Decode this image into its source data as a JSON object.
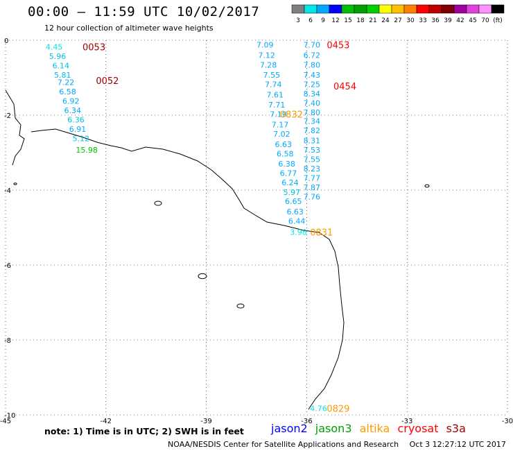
{
  "header": {
    "title": "00:00 – 11:59 UTC 10/02/2017",
    "subtitle": "12 hour collection of altimeter wave heights"
  },
  "scale": {
    "labels": [
      "3",
      "6",
      "9",
      "12",
      "15",
      "18",
      "21",
      "24",
      "27",
      "30",
      "33",
      "36",
      "39",
      "42",
      "45",
      "70",
      "(ft)"
    ],
    "colors": [
      "#7f7f7f",
      "#00e5e5",
      "#00a8ff",
      "#0000ff",
      "#00bf00",
      "#00a000",
      "#00d000",
      "#ffff00",
      "#ffc000",
      "#ff8000",
      "#ff0000",
      "#c00000",
      "#800000",
      "#a000a0",
      "#e040e0",
      "#ff90ff",
      "#000000"
    ]
  },
  "axes": {
    "x_ticks": [
      {
        "lon": -45,
        "label": "-45"
      },
      {
        "lon": -42,
        "label": "-42"
      },
      {
        "lon": -39,
        "label": "-39"
      },
      {
        "lon": -36,
        "label": "-36"
      },
      {
        "lon": -33,
        "label": "-33"
      },
      {
        "lon": -30,
        "label": "-30"
      }
    ],
    "y_ticks": [
      {
        "lat": 0,
        "label": "0"
      },
      {
        "lat": -2,
        "label": "-2"
      },
      {
        "lat": -4,
        "label": "-4"
      },
      {
        "lat": -6,
        "label": "-6"
      },
      {
        "lat": -8,
        "label": "-8"
      },
      {
        "lat": -10,
        "label": "-10"
      }
    ],
    "lon_range": [
      -45,
      -30
    ],
    "lat_range": [
      -10,
      0
    ]
  },
  "observations": [
    {
      "lon": -43.8,
      "lat": -0.1,
      "value": "4.45",
      "color": "#00e5e5"
    },
    {
      "lon": -43.7,
      "lat": -0.35,
      "value": "5.96",
      "color": "#00bfe0"
    },
    {
      "lon": -43.6,
      "lat": -0.6,
      "value": "6.14",
      "color": "#00bfe0"
    },
    {
      "lon": -43.55,
      "lat": -0.85,
      "value": "5.81",
      "color": "#00bfe0"
    },
    {
      "lon": -43.45,
      "lat": -1.05,
      "value": "7.22",
      "color": "#00a8ff"
    },
    {
      "lon": -43.4,
      "lat": -1.3,
      "value": "6.58",
      "color": "#00a8ff"
    },
    {
      "lon": -43.3,
      "lat": -1.55,
      "value": "6.92",
      "color": "#00a8ff"
    },
    {
      "lon": -43.25,
      "lat": -1.8,
      "value": "6.34",
      "color": "#00a8ff"
    },
    {
      "lon": -43.15,
      "lat": -2.05,
      "value": "6.36",
      "color": "#00bfe0"
    },
    {
      "lon": -43.1,
      "lat": -2.3,
      "value": "6.91",
      "color": "#00a8ff"
    },
    {
      "lon": -43.0,
      "lat": -2.55,
      "value": "5.12",
      "color": "#00bfe0"
    },
    {
      "lon": -42.9,
      "lat": -2.85,
      "value": "15.98",
      "color": "#00c000"
    },
    {
      "lon": -37.5,
      "lat": -0.05,
      "value": "7.09",
      "color": "#00a8ff"
    },
    {
      "lon": -37.45,
      "lat": -0.32,
      "value": "7.12",
      "color": "#00a8ff"
    },
    {
      "lon": -37.4,
      "lat": -0.58,
      "value": "7.28",
      "color": "#00a8ff"
    },
    {
      "lon": -37.3,
      "lat": -0.85,
      "value": "7.55",
      "color": "#00a8ff"
    },
    {
      "lon": -37.25,
      "lat": -1.1,
      "value": "7.74",
      "color": "#00a8ff"
    },
    {
      "lon": -37.2,
      "lat": -1.38,
      "value": "7.61",
      "color": "#00a8ff"
    },
    {
      "lon": -37.15,
      "lat": -1.65,
      "value": "7.71",
      "color": "#00a8ff"
    },
    {
      "lon": -37.1,
      "lat": -1.9,
      "value": "7.19",
      "color": "#00a8ff"
    },
    {
      "lon": -37.05,
      "lat": -2.18,
      "value": "7.17",
      "color": "#00a8ff"
    },
    {
      "lon": -37.0,
      "lat": -2.43,
      "value": "7.02",
      "color": "#00a8ff"
    },
    {
      "lon": -36.95,
      "lat": -2.7,
      "value": "6.63",
      "color": "#00a8ff"
    },
    {
      "lon": -36.9,
      "lat": -2.95,
      "value": "6.58",
      "color": "#00a8ff"
    },
    {
      "lon": -36.85,
      "lat": -3.22,
      "value": "6.38",
      "color": "#00a8ff"
    },
    {
      "lon": -36.8,
      "lat": -3.47,
      "value": "6.77",
      "color": "#00a8ff"
    },
    {
      "lon": -36.75,
      "lat": -3.72,
      "value": "6.24",
      "color": "#00a8ff"
    },
    {
      "lon": -36.7,
      "lat": -3.98,
      "value": "5.97",
      "color": "#00bfe0"
    },
    {
      "lon": -36.65,
      "lat": -4.22,
      "value": "6.65",
      "color": "#00a8ff"
    },
    {
      "lon": -36.6,
      "lat": -4.5,
      "value": "6.63",
      "color": "#00a8ff"
    },
    {
      "lon": -36.55,
      "lat": -4.75,
      "value": "6.44",
      "color": "#00a8ff"
    },
    {
      "lon": -36.5,
      "lat": -5.05,
      "value": "3.98",
      "color": "#00e5e5"
    },
    {
      "lon": -36.1,
      "lat": -0.05,
      "value": "7.70",
      "color": "#00a8ff"
    },
    {
      "lon": -36.1,
      "lat": -0.32,
      "value": "6.72",
      "color": "#00a8ff"
    },
    {
      "lon": -36.1,
      "lat": -0.58,
      "value": "7.80",
      "color": "#00a8ff"
    },
    {
      "lon": -36.1,
      "lat": -0.85,
      "value": "7.43",
      "color": "#00a8ff"
    },
    {
      "lon": -36.1,
      "lat": -1.1,
      "value": "7.25",
      "color": "#00a8ff"
    },
    {
      "lon": -36.1,
      "lat": -1.35,
      "value": "8.34",
      "color": "#00a8ff"
    },
    {
      "lon": -36.1,
      "lat": -1.6,
      "value": "7.40",
      "color": "#00a8ff"
    },
    {
      "lon": -36.1,
      "lat": -1.85,
      "value": "7.80",
      "color": "#00a8ff"
    },
    {
      "lon": -36.1,
      "lat": -2.08,
      "value": "7.34",
      "color": "#00a8ff"
    },
    {
      "lon": -36.1,
      "lat": -2.33,
      "value": "7.82",
      "color": "#00a8ff"
    },
    {
      "lon": -36.1,
      "lat": -2.6,
      "value": "8.31",
      "color": "#00a8ff"
    },
    {
      "lon": -36.1,
      "lat": -2.85,
      "value": "7.53",
      "color": "#00a8ff"
    },
    {
      "lon": -36.1,
      "lat": -3.1,
      "value": "7.55",
      "color": "#00a8ff"
    },
    {
      "lon": -36.1,
      "lat": -3.35,
      "value": "8.23",
      "color": "#00a8ff"
    },
    {
      "lon": -36.1,
      "lat": -3.6,
      "value": "7.77",
      "color": "#00a8ff"
    },
    {
      "lon": -36.1,
      "lat": -3.85,
      "value": "7.87",
      "color": "#00a8ff"
    },
    {
      "lon": -36.1,
      "lat": -4.1,
      "value": "7.76",
      "color": "#00a8ff"
    },
    {
      "lon": -35.9,
      "lat": -9.75,
      "value": "4.76",
      "color": "#00e5e5"
    }
  ],
  "passes": [
    {
      "lon": -42.7,
      "lat": -0.1,
      "label": "0053",
      "color": "#a00000"
    },
    {
      "lon": -42.3,
      "lat": -1.0,
      "label": "0052",
      "color": "#a00000"
    },
    {
      "lon": -35.4,
      "lat": -0.05,
      "label": "0453",
      "color": "#ff0000"
    },
    {
      "lon": -35.2,
      "lat": -1.15,
      "label": "0454",
      "color": "#ff0000"
    },
    {
      "lon": -36.8,
      "lat": -1.9,
      "label": "0832",
      "color": "#ff9900"
    },
    {
      "lon": -35.9,
      "lat": -5.05,
      "label": "0831",
      "color": "#ff9900"
    },
    {
      "lon": -35.4,
      "lat": -9.75,
      "label": "0829",
      "color": "#ff9900"
    }
  ],
  "note": "note:  1) Time is in UTC;  2) SWH is in feet",
  "legend": [
    {
      "label": "jason2",
      "color": "#0000ff"
    },
    {
      "label": "jason3",
      "color": "#00a000"
    },
    {
      "label": "altika",
      "color": "#ff9900"
    },
    {
      "label": "cryosat",
      "color": "#ff0000"
    },
    {
      "label": "s3a",
      "color": "#a00000"
    }
  ],
  "footer": {
    "credit": "NOAA/NESDIS Center for Satellite Applications and Research",
    "timestamp": "Oct  3 12:27:12 UTC 2017"
  }
}
